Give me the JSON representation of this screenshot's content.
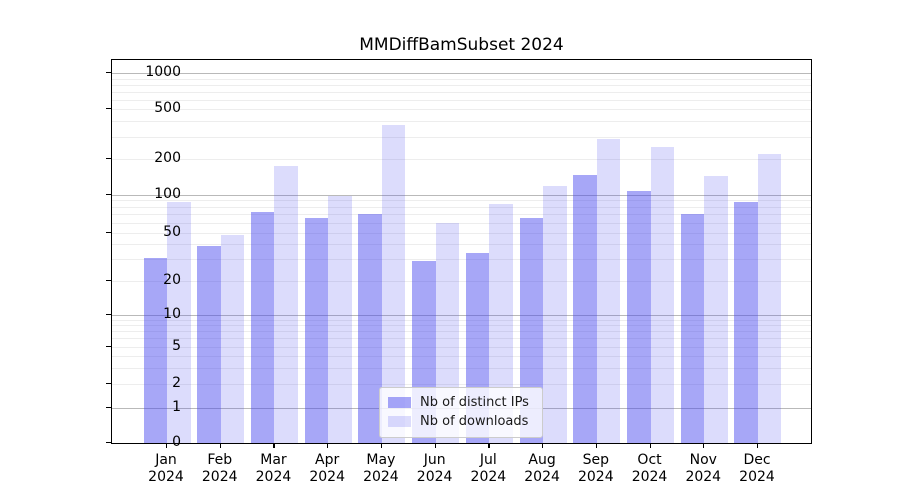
{
  "title": "MMDiffBamSubset 2024",
  "legend": {
    "items": [
      {
        "label": "Nb of distinct IPs",
        "color": "rgba(68,68,238,0.47)"
      },
      {
        "label": "Nb of downloads",
        "color": "rgba(68,68,238,0.19)"
      }
    ]
  },
  "y_axis": {
    "tick_values": [
      0,
      1,
      2,
      5,
      10,
      20,
      50,
      100,
      200,
      500,
      1000
    ],
    "tick_labels": [
      "0",
      "1",
      "2",
      "5",
      "10",
      "20",
      "50",
      "100",
      "200",
      "500",
      "1000"
    ]
  },
  "x_axis": {
    "ticks": [
      {
        "month": "Jan",
        "year": "2024"
      },
      {
        "month": "Feb",
        "year": "2024"
      },
      {
        "month": "Mar",
        "year": "2024"
      },
      {
        "month": "Apr",
        "year": "2024"
      },
      {
        "month": "May",
        "year": "2024"
      },
      {
        "month": "Jun",
        "year": "2024"
      },
      {
        "month": "Jul",
        "year": "2024"
      },
      {
        "month": "Aug",
        "year": "2024"
      },
      {
        "month": "Sep",
        "year": "2024"
      },
      {
        "month": "Oct",
        "year": "2024"
      },
      {
        "month": "Nov",
        "year": "2024"
      },
      {
        "month": "Dec",
        "year": "2024"
      }
    ]
  },
  "chart_data": {
    "type": "bar",
    "title": "MMDiffBamSubset 2024",
    "categories": [
      "Jan 2024",
      "Feb 2024",
      "Mar 2024",
      "Apr 2024",
      "May 2024",
      "Jun 2024",
      "Jul 2024",
      "Aug 2024",
      "Sep 2024",
      "Oct 2024",
      "Nov 2024",
      "Dec 2024"
    ],
    "series": [
      {
        "name": "Nb of distinct IPs",
        "color": "rgba(68,68,238,0.47)",
        "values": [
          31,
          39,
          73,
          65,
          70,
          29,
          34,
          65,
          145,
          107,
          70,
          88
        ]
      },
      {
        "name": "Nb of downloads",
        "color": "rgba(68,68,238,0.19)",
        "values": [
          88,
          48,
          173,
          98,
          375,
          60,
          85,
          118,
          290,
          250,
          144,
          218
        ]
      }
    ],
    "yscale": "symlog",
    "yticks": [
      0,
      1,
      2,
      5,
      10,
      20,
      50,
      100,
      200,
      500,
      1000
    ],
    "minor_gridlines": [
      2,
      3,
      4,
      5,
      6,
      7,
      8,
      9,
      20,
      30,
      40,
      50,
      60,
      70,
      80,
      90,
      200,
      300,
      400,
      500,
      600,
      700,
      800,
      900
    ],
    "major_gridlines": [
      1,
      10,
      100,
      1000
    ],
    "ylim": [
      0,
      1300
    ],
    "grid": true,
    "legend_position": "lower center"
  }
}
